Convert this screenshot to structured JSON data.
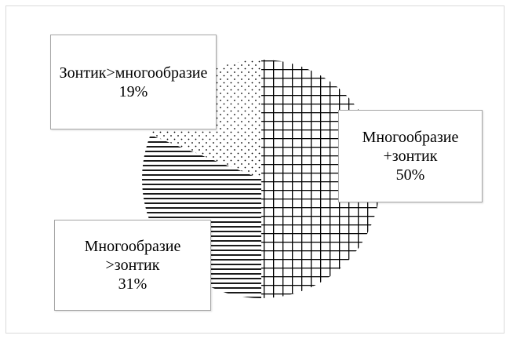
{
  "chart_data": {
    "type": "pie",
    "categories": [
      "Многообразие +зонтик",
      "Многообразие >зонтик",
      "Зонтик>многообразие"
    ],
    "values": [
      50,
      31,
      19
    ],
    "labels": [
      {
        "name": "Многообразие +зонтик",
        "percent": "50%"
      },
      {
        "name": "Многообразие >зонтик",
        "percent": "31%"
      },
      {
        "name": "Зонтик>многообразие",
        "percent": "19%"
      }
    ],
    "patterns": [
      "grid",
      "horizontal-lines",
      "dots"
    ],
    "start_angle": "top, clockwise",
    "title": "",
    "legend": "none"
  }
}
